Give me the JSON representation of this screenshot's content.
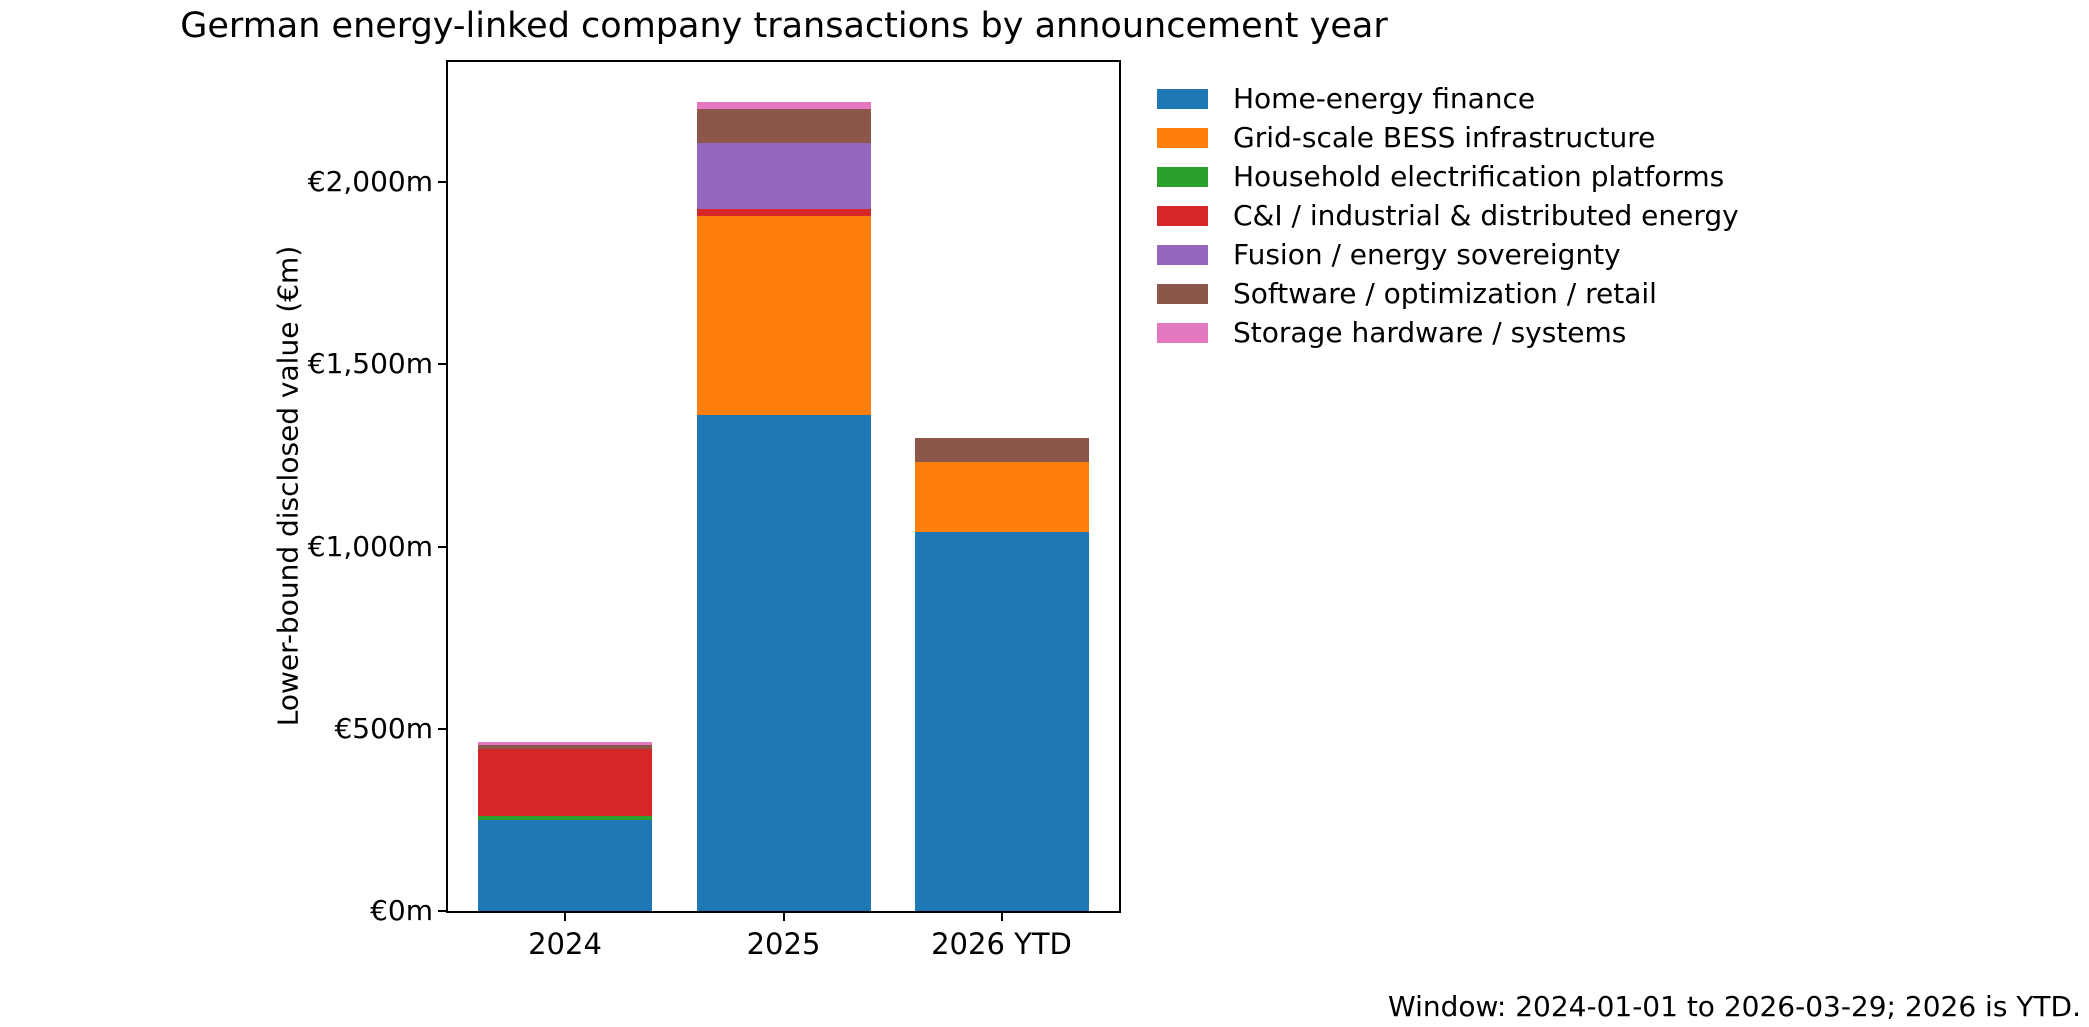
{
  "figure": {
    "footnote": "Window: 2024-01-01 to 2026-03-29; 2026 is YTD."
  },
  "chart_data": {
    "type": "bar",
    "stacked": true,
    "title": "German energy-linked company transactions by announcement year",
    "xlabel": "",
    "ylabel": "Lower-bound disclosed value (€m)",
    "categories": [
      "2024",
      "2025",
      "2026 YTD"
    ],
    "series": [
      {
        "name": "Home-energy finance",
        "color": "#1f77b4",
        "values": [
          250,
          1360,
          1040
        ]
      },
      {
        "name": "Grid-scale BESS infrastructure",
        "color": "#ff7f0e",
        "values": [
          0,
          546,
          192
        ]
      },
      {
        "name": "Household electrification platforms",
        "color": "#2ca02c",
        "values": [
          10,
          0,
          0
        ]
      },
      {
        "name": "C&I / industrial & distributed energy",
        "color": "#d62728",
        "values": [
          184,
          21,
          0
        ]
      },
      {
        "name": "Fusion / energy sovereignty",
        "color": "#9467bd",
        "values": [
          0,
          180,
          0
        ]
      },
      {
        "name": "Software / optimization / retail",
        "color": "#8c564b",
        "values": [
          12,
          93,
          67
        ]
      },
      {
        "name": "Storage hardware / systems",
        "color": "#e377c2",
        "values": [
          8,
          21,
          0
        ]
      }
    ],
    "totals": [
      464,
      2221,
      1299
    ],
    "ylim": [
      0,
      2330
    ],
    "yticks": [
      {
        "value": 0,
        "label": "€0m"
      },
      {
        "value": 500,
        "label": "€500m"
      },
      {
        "value": 1000,
        "label": "€1,000m"
      },
      {
        "value": 1500,
        "label": "€1,500m"
      },
      {
        "value": 2000,
        "label": "€2,000m"
      }
    ],
    "grid": false,
    "legend_position": "outside-upper-right"
  }
}
